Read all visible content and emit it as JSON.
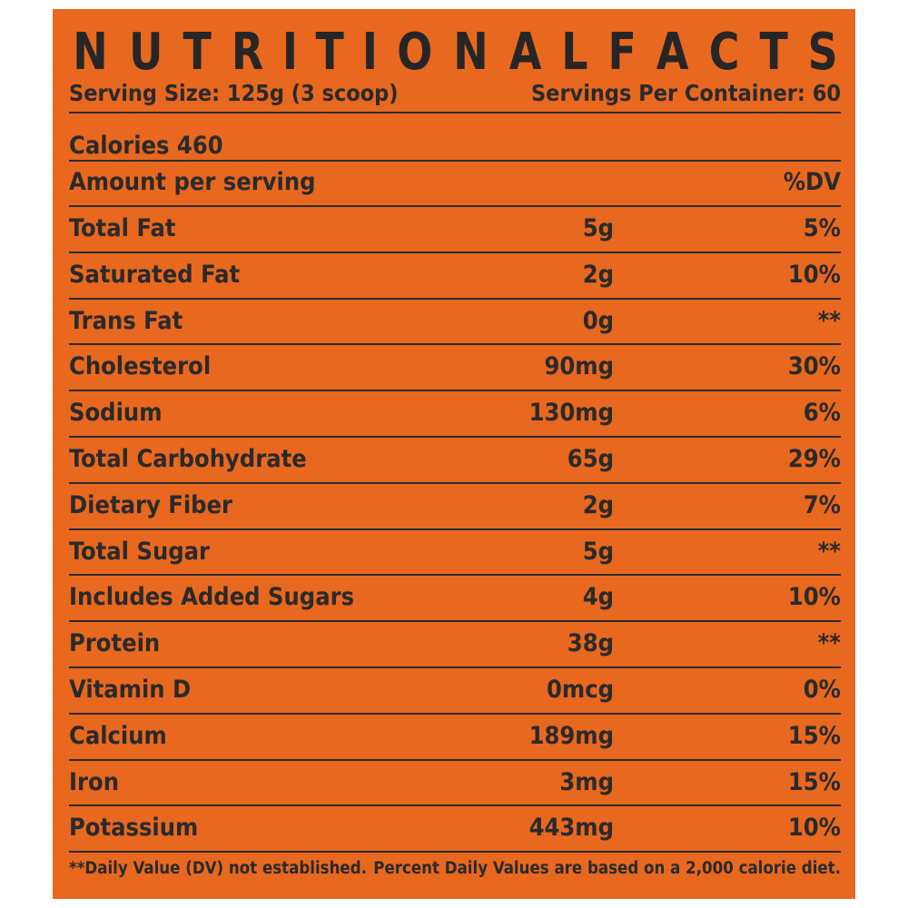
{
  "label": {
    "title": "NUTRITIONALFACTS",
    "serving_size": "Serving Size: 125g (3 scoop)",
    "servings_per_container": "Servings Per Container: 60",
    "calories": "Calories 460",
    "amount_header": "Amount per serving",
    "dv_header": "%DV",
    "nutrients": [
      {
        "name": "Total Fat",
        "amount": "5g",
        "dv": "5%"
      },
      {
        "name": "Saturated Fat",
        "amount": "2g",
        "dv": "10%"
      },
      {
        "name": "Trans Fat",
        "amount": "0g",
        "dv": "**"
      },
      {
        "name": "Cholesterol",
        "amount": "90mg",
        "dv": "30%"
      },
      {
        "name": "Sodium",
        "amount": "130mg",
        "dv": "6%"
      },
      {
        "name": "Total Carbohydrate",
        "amount": "65g",
        "dv": "29%"
      },
      {
        "name": "Dietary Fiber",
        "amount": "2g",
        "dv": "7%"
      },
      {
        "name": "Total Sugar",
        "amount": "5g",
        "dv": "**"
      },
      {
        "name": "Includes Added Sugars",
        "amount": "4g",
        "dv": "10%"
      },
      {
        "name": "Protein",
        "amount": "38g",
        "dv": "**"
      },
      {
        "name": "Vitamin D",
        "amount": "0mcg",
        "dv": "0%"
      },
      {
        "name": "Calcium",
        "amount": "189mg",
        "dv": "15%"
      },
      {
        "name": "Iron",
        "amount": "3mg",
        "dv": "15%"
      },
      {
        "name": "Potassium",
        "amount": "443mg",
        "dv": "10%"
      }
    ],
    "footnote_left": "**Daily Value (DV) not established.",
    "footnote_right": "Percent Daily Values are based on a 2,000 calorie diet."
  },
  "colors": {
    "background": "#e8681f",
    "text": "#262626"
  }
}
